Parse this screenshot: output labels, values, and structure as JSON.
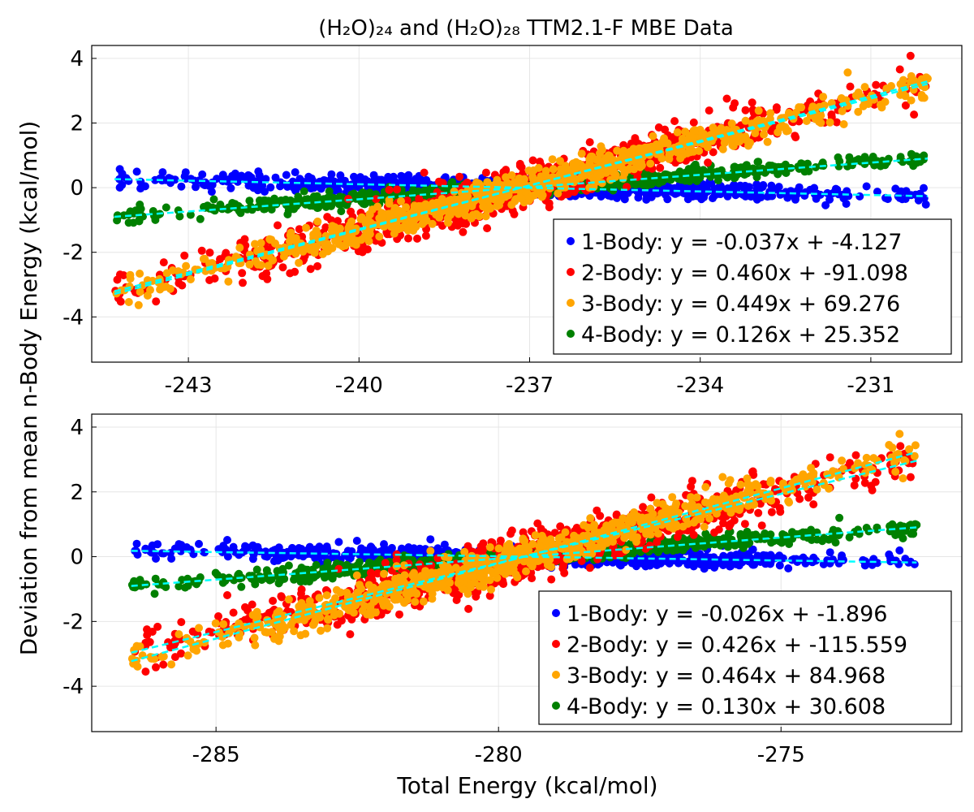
{
  "title": "(H₂O)₂₄ and (H₂O)₂₈ TTM2.1-F MBE Data",
  "xlabel": "Total Energy (kcal/mol)",
  "ylabel": "Deviation from mean n-Body Energy (kcal/mol)",
  "colors": {
    "1-Body": "#0000ff",
    "2-Body": "#ff0000",
    "3-Body": "#ffa500",
    "4-Body": "#008000",
    "fit": "#00ffff"
  },
  "chart_data": [
    {
      "type": "scatter",
      "panel": "top",
      "grid": true,
      "legend_position": "bottom-right",
      "xlim": [
        -244.7,
        -229.4
      ],
      "ylim": [
        -5.4,
        4.4
      ],
      "xticks": [
        -243,
        -240,
        -237,
        -234,
        -231
      ],
      "yticks": [
        -4,
        -2,
        0,
        2,
        4
      ],
      "x_range": [
        -244.3,
        -230.0
      ],
      "series": [
        {
          "name": "1-Body",
          "legend": "1-Body: y = -0.037x + -4.127",
          "slope": -0.037,
          "center": [
            -237.15,
            0.0
          ],
          "spread": 0.13
        },
        {
          "name": "2-Body",
          "legend": "2-Body: y = 0.460x + -91.098",
          "slope": 0.46,
          "center": [
            -237.15,
            0.0
          ],
          "spread": 0.33
        },
        {
          "name": "3-Body",
          "legend": "3-Body: y = 0.449x + 69.276",
          "slope": 0.449,
          "center": [
            -237.15,
            0.0
          ],
          "spread": 0.23
        },
        {
          "name": "4-Body",
          "legend": "4-Body: y = 0.126x + 25.352",
          "slope": 0.126,
          "center": [
            -237.15,
            0.0
          ],
          "spread": 0.11
        }
      ]
    },
    {
      "type": "scatter",
      "panel": "bottom",
      "grid": true,
      "legend_position": "bottom-right",
      "xlim": [
        -287.2,
        -271.8
      ],
      "ylim": [
        -5.4,
        4.4
      ],
      "xticks": [
        -285,
        -280,
        -275
      ],
      "yticks": [
        -4,
        -2,
        0,
        2,
        4
      ],
      "x_range": [
        -286.5,
        -272.6
      ],
      "series": [
        {
          "name": "1-Body",
          "legend": "1-Body: y = -0.026x + -1.896",
          "slope": -0.026,
          "center": [
            -279.55,
            0.0
          ],
          "spread": 0.13
        },
        {
          "name": "2-Body",
          "legend": "2-Body: y = 0.426x + -115.559",
          "slope": 0.426,
          "center": [
            -279.55,
            0.0
          ],
          "spread": 0.36
        },
        {
          "name": "3-Body",
          "legend": "3-Body: y = 0.464x + 84.968",
          "slope": 0.464,
          "center": [
            -279.55,
            0.0
          ],
          "spread": 0.25
        },
        {
          "name": "4-Body",
          "legend": "4-Body: y = 0.130x + 30.608",
          "slope": 0.13,
          "center": [
            -279.55,
            0.0
          ],
          "spread": 0.11
        }
      ]
    }
  ]
}
